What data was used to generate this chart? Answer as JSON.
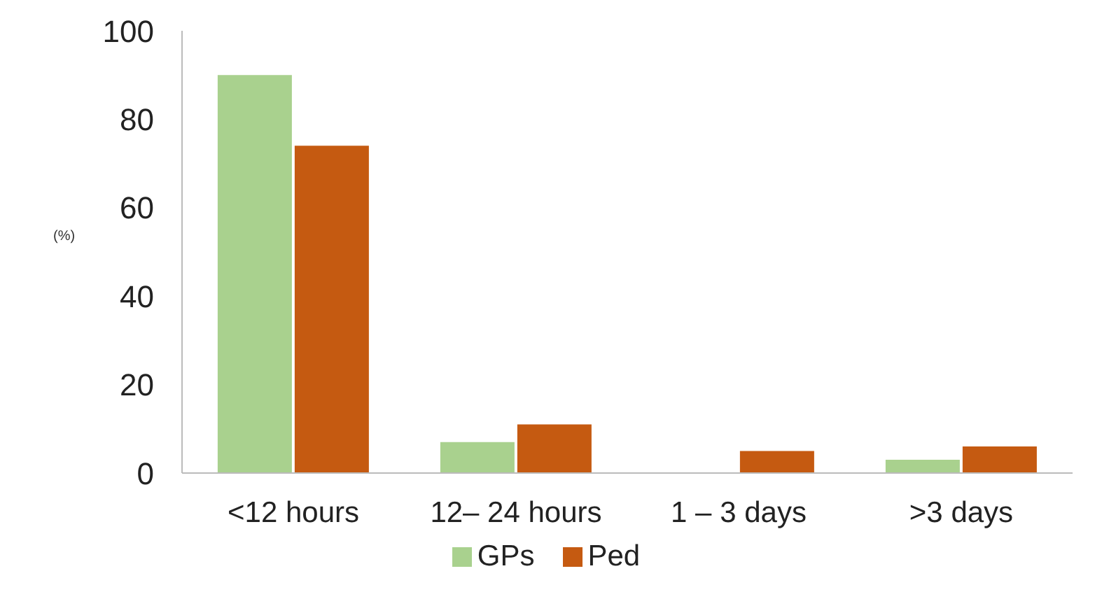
{
  "chart_data": {
    "type": "bar",
    "ylabel": "(%)",
    "categories": [
      "<12 hours",
      "12– 24 hours",
      "1 – 3 days",
      ">3 days"
    ],
    "series": [
      {
        "name": "GPs",
        "color": "#a9d18e",
        "values": [
          90,
          7,
          0,
          3
        ]
      },
      {
        "name": "Ped",
        "color": "#c55a11",
        "values": [
          74,
          11,
          5,
          6
        ]
      }
    ],
    "ylim": [
      0,
      100
    ],
    "yticks": [
      0,
      20,
      40,
      60,
      80,
      100
    ],
    "legend": "bottom"
  }
}
